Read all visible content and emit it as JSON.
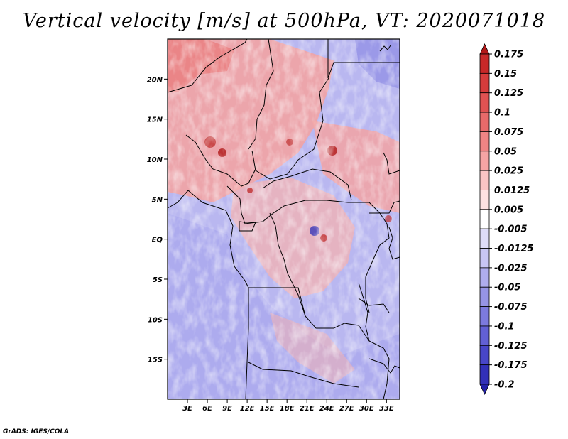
{
  "title": "Vertical velocity [m/s] at 500hPa, VT: 2020071018",
  "footer": "GrADS: IGES/COLA",
  "map": {
    "lat_labels": [
      "20N",
      "15N",
      "10N",
      "5N",
      "EQ",
      "5S",
      "10S",
      "15S"
    ],
    "lat_values": [
      20,
      15,
      10,
      5,
      0,
      -5,
      -10,
      -15
    ],
    "lon_labels": [
      "3E",
      "6E",
      "9E",
      "12E",
      "15E",
      "18E",
      "21E",
      "24E",
      "27E",
      "30E",
      "33E"
    ],
    "lon_values": [
      3,
      6,
      9,
      12,
      15,
      18,
      21,
      24,
      27,
      30,
      33
    ],
    "lat_range": [
      -20,
      25
    ],
    "lon_range": [
      0,
      35
    ]
  },
  "colorbar": {
    "labels": [
      "0.175",
      "0.15",
      "0.125",
      "0.1",
      "0.075",
      "0.05",
      "0.025",
      "0.0125",
      "0.005",
      "-0.005",
      "-0.0125",
      "-0.025",
      "-0.05",
      "-0.075",
      "-0.1",
      "-0.125",
      "-0.175",
      "-0.2"
    ],
    "colors": [
      "#b31818",
      "#c82828",
      "#d63c3c",
      "#e05252",
      "#e86a6a",
      "#f08484",
      "#f6a4a4",
      "#fac4c4",
      "#fde2e2",
      "#ffffff",
      "#dedcf9",
      "#c8c6f4",
      "#afadee",
      "#9694e6",
      "#7c7ade",
      "#6260d4",
      "#4846c8",
      "#3230b8",
      "#2220a8"
    ]
  }
}
